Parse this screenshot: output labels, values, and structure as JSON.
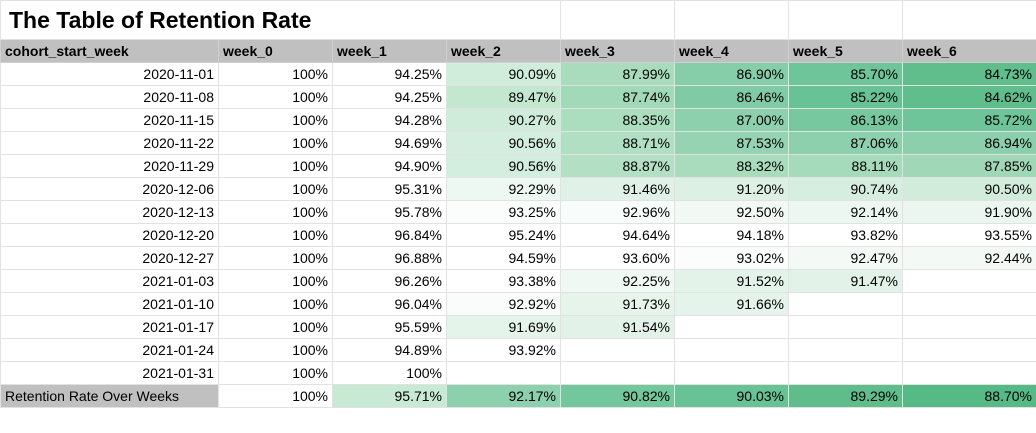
{
  "title": "The Table of Retention Rate",
  "headers": [
    "cohort_start_week",
    "week_0",
    "week_1",
    "week_2",
    "week_3",
    "week_4",
    "week_5",
    "week_6"
  ],
  "rows": [
    {
      "cohort": "2020-11-01",
      "values": [
        "100%",
        "94.25%",
        "90.09%",
        "87.99%",
        "86.90%",
        "85.70%",
        "84.73%"
      ],
      "colors": [
        "",
        "",
        "#d0ecda",
        "#a8dcbd",
        "#86ceaa",
        "#6fc59a",
        "#5fbe8c"
      ]
    },
    {
      "cohort": "2020-11-08",
      "values": [
        "100%",
        "94.25%",
        "89.47%",
        "87.74%",
        "86.46%",
        "85.22%",
        "84.62%"
      ],
      "colors": [
        "",
        "",
        "#c4e7d0",
        "#a2d9b8",
        "#80cba5",
        "#68c295",
        "#5fbe8c"
      ]
    },
    {
      "cohort": "2020-11-15",
      "values": [
        "100%",
        "94.28%",
        "90.27%",
        "88.35%",
        "87.00%",
        "86.13%",
        "85.72%"
      ],
      "colors": [
        "",
        "",
        "#cfebd9",
        "#abddbf",
        "#8dd0ad",
        "#78c89f",
        "#6fc59a"
      ]
    },
    {
      "cohort": "2020-11-22",
      "values": [
        "100%",
        "94.69%",
        "90.56%",
        "88.71%",
        "87.53%",
        "87.06%",
        "86.94%"
      ],
      "colors": [
        "",
        "",
        "#d3edde",
        "#b0dfc3",
        "#96d3b3",
        "#8dd0ad",
        "#8bcfac"
      ]
    },
    {
      "cohort": "2020-11-29",
      "values": [
        "100%",
        "94.90%",
        "90.56%",
        "88.87%",
        "88.32%",
        "88.11%",
        "87.85%"
      ],
      "colors": [
        "",
        "",
        "#d3edde",
        "#b3e0c5",
        "#a8dcbd",
        "#a5dbbb",
        "#a0d8b7"
      ]
    },
    {
      "cohort": "2020-12-06",
      "values": [
        "100%",
        "95.31%",
        "92.29%",
        "91.46%",
        "91.20%",
        "90.74%",
        "90.50%"
      ],
      "colors": [
        "",
        "",
        "#eef8f2",
        "#e0f2e7",
        "#dcf0e4",
        "#d6eee0",
        "#d2ecdc"
      ]
    },
    {
      "cohort": "2020-12-13",
      "values": [
        "100%",
        "95.78%",
        "93.25%",
        "92.96%",
        "92.50%",
        "92.14%",
        "91.90%"
      ],
      "colors": [
        "",
        "",
        "#fbfdfc",
        "#f8fcfa",
        "#f2f9f5",
        "#edf7f1",
        "#eaf6ef"
      ]
    },
    {
      "cohort": "2020-12-20",
      "values": [
        "100%",
        "96.84%",
        "95.24%",
        "94.64%",
        "94.18%",
        "93.82%",
        "93.55%"
      ],
      "colors": [
        "",
        "",
        "",
        "",
        "",
        "",
        ""
      ]
    },
    {
      "cohort": "2020-12-27",
      "values": [
        "100%",
        "96.88%",
        "94.59%",
        "93.60%",
        "93.02%",
        "92.47%",
        "92.44%"
      ],
      "colors": [
        "",
        "",
        "",
        "",
        "#fafdfb",
        "#f3faf6",
        "#f3faf6"
      ]
    },
    {
      "cohort": "2021-01-03",
      "values": [
        "100%",
        "96.26%",
        "93.38%",
        "92.25%",
        "91.52%",
        "91.47%",
        ""
      ],
      "colors": [
        "",
        "",
        "",
        "#f0f8f3",
        "#e4f3ea",
        "#e2f2e8",
        ""
      ]
    },
    {
      "cohort": "2021-01-10",
      "values": [
        "100%",
        "96.04%",
        "92.92%",
        "91.73%",
        "91.66%",
        "",
        ""
      ],
      "colors": [
        "",
        "",
        "#f8fcfa",
        "#e6f4eb",
        "#e5f4eb",
        "",
        ""
      ]
    },
    {
      "cohort": "2021-01-17",
      "values": [
        "100%",
        "95.59%",
        "91.69%",
        "91.54%",
        "",
        "",
        ""
      ],
      "colors": [
        "",
        "",
        "#e5f4eb",
        "#e2f2e8",
        "",
        "",
        ""
      ]
    },
    {
      "cohort": "2021-01-24",
      "values": [
        "100%",
        "94.89%",
        "93.92%",
        "",
        "",
        "",
        ""
      ],
      "colors": [
        "",
        "",
        "",
        "",
        "",
        "",
        ""
      ]
    },
    {
      "cohort": "2021-01-31",
      "values": [
        "100%",
        "100%",
        "",
        "",
        "",
        "",
        ""
      ],
      "colors": [
        "",
        "",
        "",
        "",
        "",
        "",
        ""
      ]
    }
  ],
  "summary": {
    "label": "Retention Rate Over Weeks",
    "values": [
      "100%",
      "95.71%",
      "92.17%",
      "90.82%",
      "90.03%",
      "89.29%",
      "88.70%"
    ],
    "colors": [
      "",
      "#c8e9d4",
      "#8dd0ad",
      "#72c79c",
      "#67c295",
      "#5ebd8b",
      "#56ba86"
    ]
  }
}
